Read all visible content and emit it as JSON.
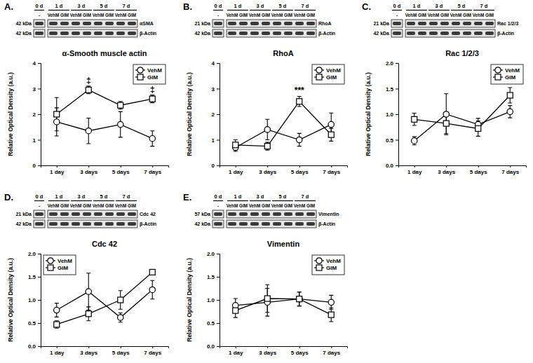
{
  "chart_data": [
    {
      "type": "line",
      "panel": "A.",
      "title": "α-Smooth muscle actin",
      "y_label": "Relative Optical Density (a.u.)",
      "categories": [
        "1 day",
        "3 days",
        "5 days",
        "7 days"
      ],
      "series": [
        {
          "name": "VehM",
          "color": "#000000",
          "marker": "circle",
          "values": [
            1.7,
            1.35,
            1.6,
            1.05
          ],
          "errors": [
            0.55,
            0.5,
            0.5,
            0.3
          ]
        },
        {
          "name": "GIM",
          "color": "#000000",
          "marker": "square",
          "values": [
            2.0,
            2.95,
            2.35,
            2.6
          ],
          "errors": [
            0.65,
            0.15,
            0.15,
            0.15
          ]
        }
      ],
      "ylim": [
        0,
        4
      ],
      "yticks": [
        0,
        1,
        2,
        3,
        4
      ],
      "legend": "upper right",
      "annotations": [
        {
          "text": "‡",
          "x": "3 days"
        },
        {
          "text": "‡",
          "x": "7 days"
        }
      ],
      "blot": {
        "days": [
          "0 d",
          "1 d",
          "3 d",
          "5 d",
          "7 d"
        ],
        "lanes": [
          [
            "-"
          ],
          [
            "VehM",
            "GIM"
          ],
          [
            "VehM",
            "GIM"
          ],
          [
            "VehM",
            "GIM"
          ],
          [
            "VehM",
            "GIM"
          ]
        ],
        "bands": [
          {
            "kda": "42 kDa",
            "protein": "αSMA"
          },
          {
            "kda": "42 kDa",
            "protein": "β-Actin"
          }
        ]
      }
    },
    {
      "type": "line",
      "panel": "B.",
      "title": "RhoA",
      "y_label": "Relative Optical Density (a.u.)",
      "categories": [
        "1 day",
        "3 days",
        "5 days",
        "7 days"
      ],
      "series": [
        {
          "name": "VehM",
          "color": "#000000",
          "marker": "circle",
          "values": [
            0.7,
            1.4,
            1.0,
            1.6
          ],
          "errors": [
            0.15,
            0.4,
            0.25,
            0.45
          ]
        },
        {
          "name": "GIM",
          "color": "#000000",
          "marker": "square",
          "values": [
            0.8,
            0.75,
            2.5,
            1.2
          ],
          "errors": [
            0.2,
            0.15,
            0.2,
            0.25
          ]
        }
      ],
      "ylim": [
        0,
        4
      ],
      "yticks": [
        0,
        1,
        2,
        3,
        4
      ],
      "legend": "upper right",
      "annotations": [
        {
          "text": "***",
          "x": "5 days"
        }
      ],
      "blot": {
        "days": [
          "0 d",
          "1 d",
          "3 d",
          "5 d",
          "7 d"
        ],
        "lanes": [
          [
            "-"
          ],
          [
            "VehM",
            "GIM"
          ],
          [
            "VehM",
            "GIM"
          ],
          [
            "VehM",
            "GIM"
          ],
          [
            "VehM",
            "GIM"
          ]
        ],
        "bands": [
          {
            "kda": "21 kDa",
            "protein": "RhoA"
          },
          {
            "kda": "42 kDa",
            "protein": "β-Actin"
          }
        ]
      }
    },
    {
      "type": "line",
      "panel": "C.",
      "title": "Rac 1/2/3",
      "y_label": "Relative Optical Density (a.u.)",
      "categories": [
        "1 day",
        "3 days",
        "5 days",
        "7 days"
      ],
      "series": [
        {
          "name": "VehM",
          "color": "#000000",
          "marker": "circle",
          "values": [
            0.48,
            1.0,
            0.8,
            1.05
          ],
          "errors": [
            0.08,
            0.4,
            0.12,
            0.12
          ]
        },
        {
          "name": "GIM",
          "color": "#000000",
          "marker": "square",
          "values": [
            0.9,
            0.82,
            0.72,
            1.37
          ],
          "errors": [
            0.12,
            0.2,
            0.15,
            0.15
          ]
        }
      ],
      "ylim": [
        0,
        2
      ],
      "yticks": [
        {
          "value": 0,
          "label": "0.0"
        },
        {
          "value": 0.5,
          "label": "0.5"
        },
        {
          "value": 1,
          "label": "1.0"
        },
        {
          "value": 1.5,
          "label": "1.5"
        },
        {
          "value": 2,
          "label": "2.0"
        }
      ],
      "legend": "upper right",
      "blot": {
        "days": [
          "0 d",
          "1 d",
          "3 d",
          "5 d",
          "7 d"
        ],
        "lanes": [
          [
            "-"
          ],
          [
            "VehM",
            "GIM"
          ],
          [
            "VehM",
            "GIM"
          ],
          [
            "VehM",
            "GIM"
          ],
          [
            "VehM",
            "GIM"
          ]
        ],
        "bands": [
          {
            "kda": "21 kDa",
            "protein": "Rac 1/2/3"
          },
          {
            "kda": "42 kDa",
            "protein": "β-Actin"
          }
        ]
      }
    },
    {
      "type": "line",
      "panel": "D.",
      "title": "Cdc 42",
      "y_label": "Relative Optical Density (a.u.)",
      "categories": [
        "1 day",
        "3 days",
        "5 days",
        "7 days"
      ],
      "series": [
        {
          "name": "VehM",
          "color": "#000000",
          "marker": "circle",
          "values": [
            0.78,
            1.18,
            0.62,
            1.22
          ],
          "errors": [
            0.15,
            0.4,
            0.1,
            0.2
          ]
        },
        {
          "name": "GIM",
          "color": "#000000",
          "marker": "square",
          "values": [
            0.47,
            0.7,
            1.0,
            1.6
          ],
          "errors": [
            0.08,
            0.15,
            0.2,
            0.05
          ]
        }
      ],
      "ylim": [
        0,
        2
      ],
      "yticks": [
        {
          "value": 0,
          "label": "0.0"
        },
        {
          "value": 0.5,
          "label": "0.5"
        },
        {
          "value": 1,
          "label": "1.0"
        },
        {
          "value": 1.5,
          "label": "1.5"
        },
        {
          "value": 2,
          "label": "2.0"
        }
      ],
      "legend": "upper left",
      "blot": {
        "days": [
          "0 d",
          "1 d",
          "3 d",
          "5 d",
          "7 d"
        ],
        "lanes": [
          [
            "-"
          ],
          [
            "VehM",
            "GIM"
          ],
          [
            "VehM",
            "GIM"
          ],
          [
            "VehM",
            "GIM"
          ],
          [
            "VehM",
            "GIM"
          ]
        ],
        "bands": [
          {
            "kda": "21 kDa",
            "protein": "Cdc 42"
          },
          {
            "kda": "42 kDa",
            "protein": "β-Actin"
          }
        ]
      }
    },
    {
      "type": "line",
      "panel": "E.",
      "title": "Vimentin",
      "y_label": "Relative Optical Density (a.u.)",
      "categories": [
        "1 day",
        "3 days",
        "5 days",
        "7 days"
      ],
      "series": [
        {
          "name": "VehM",
          "color": "#000000",
          "marker": "circle",
          "values": [
            0.88,
            0.95,
            1.02,
            0.95
          ],
          "errors": [
            0.15,
            0.3,
            0.15,
            0.15
          ]
        },
        {
          "name": "GIM",
          "color": "#000000",
          "marker": "square",
          "values": [
            0.77,
            1.03,
            1.02,
            0.68
          ],
          "errors": [
            0.15,
            0.3,
            0.15,
            0.15
          ]
        }
      ],
      "ylim": [
        0,
        2
      ],
      "yticks": [
        {
          "value": 0,
          "label": "0.0"
        },
        {
          "value": 0.5,
          "label": "0.5"
        },
        {
          "value": 1,
          "label": "1.0"
        },
        {
          "value": 1.5,
          "label": "1.5"
        },
        {
          "value": 2,
          "label": "2.0"
        }
      ],
      "legend": "upper right",
      "blot": {
        "days": [
          "0 d",
          "1 d",
          "3 d",
          "5 d",
          "7 d"
        ],
        "lanes": [
          [
            "-"
          ],
          [
            "VehM",
            "GIM"
          ],
          [
            "VehM",
            "GIM"
          ],
          [
            "VehM",
            "GIM"
          ],
          [
            "VehM",
            "GIM"
          ]
        ],
        "bands": [
          {
            "kda": "57 kDa",
            "protein": "Vimentin"
          },
          {
            "kda": "42 kDa",
            "protein": "β-Actin"
          }
        ]
      }
    }
  ]
}
